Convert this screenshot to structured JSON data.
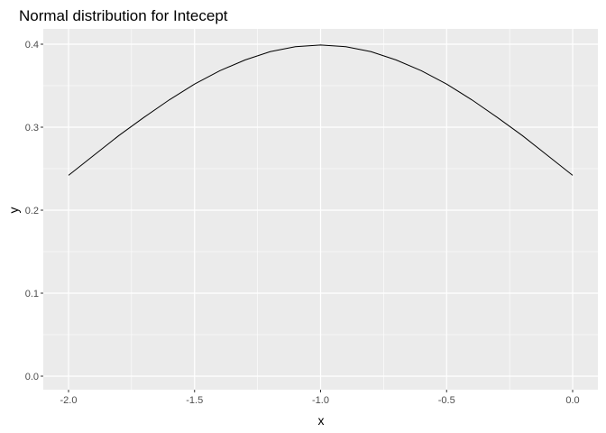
{
  "chart_data": {
    "type": "line",
    "title": "Normal distribution for Intecept",
    "xlabel": "x",
    "ylabel": "y",
    "xlim": [
      -2.0,
      0.0
    ],
    "ylim": [
      0.0,
      0.4
    ],
    "x_ticks": [
      -2.0,
      -1.5,
      -1.0,
      -0.5,
      0.0
    ],
    "x_tick_labels": [
      "-2.0",
      "-1.5",
      "-1.0",
      "-0.5",
      "0.0"
    ],
    "y_ticks": [
      0.0,
      0.1,
      0.2,
      0.3,
      0.4
    ],
    "y_tick_labels": [
      "0.0",
      "0.1",
      "0.2",
      "0.3",
      "0.4"
    ],
    "grid": true,
    "series": [
      {
        "color": "#000000",
        "x": [
          -2.0,
          -1.9,
          -1.8,
          -1.7,
          -1.6,
          -1.5,
          -1.4,
          -1.3,
          -1.2,
          -1.1,
          -1.0,
          -0.9,
          -0.8,
          -0.7,
          -0.6,
          -0.5,
          -0.4,
          -0.3,
          -0.2,
          -0.1,
          0.0
        ],
        "y": [
          0.242,
          0.266,
          0.29,
          0.312,
          0.333,
          0.352,
          0.368,
          0.381,
          0.391,
          0.397,
          0.399,
          0.397,
          0.391,
          0.381,
          0.368,
          0.352,
          0.333,
          0.312,
          0.29,
          0.266,
          0.242
        ]
      }
    ]
  },
  "colors": {
    "panel_background": "#ebebeb",
    "grid_major": "#ffffff",
    "line": "#000000"
  }
}
